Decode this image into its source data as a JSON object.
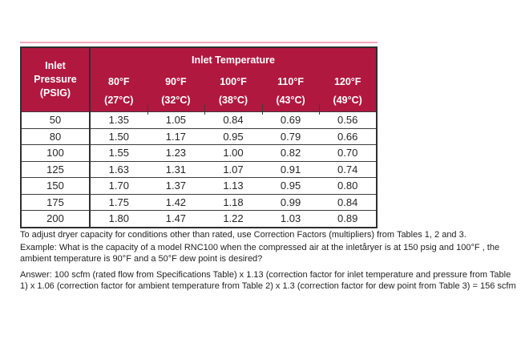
{
  "divider": {
    "color": "#f1a8bc"
  },
  "table": {
    "accent_color": "#b11840",
    "border_color": "#2f2f2f",
    "header": {
      "pressure_label": "Inlet Pressure (PSIG)",
      "group_label": "Inlet Temperature",
      "columns": [
        {
          "fahrenheit": "80°F",
          "celsius": "(27°C)"
        },
        {
          "fahrenheit": "90°F",
          "celsius": "(32°C)"
        },
        {
          "fahrenheit": "100°F",
          "celsius": "(38°C)"
        },
        {
          "fahrenheit": "110°F",
          "celsius": "(43°C)"
        },
        {
          "fahrenheit": "120°F",
          "celsius": "(49°C)"
        }
      ]
    },
    "rows": [
      {
        "pressure": "50",
        "factors": [
          "1.35",
          "1.05",
          "0.84",
          "0.69",
          "0.56"
        ]
      },
      {
        "pressure": "80",
        "factors": [
          "1.50",
          "1.17",
          "0.95",
          "0.79",
          "0.66"
        ]
      },
      {
        "pressure": "100",
        "factors": [
          "1.55",
          "1.23",
          "1.00",
          "0.82",
          "0.70"
        ]
      },
      {
        "pressure": "125",
        "factors": [
          "1.63",
          "1.31",
          "1.07",
          "0.91",
          "0.74"
        ]
      },
      {
        "pressure": "150",
        "factors": [
          "1.70",
          "1.37",
          "1.13",
          "0.95",
          "0.80"
        ]
      },
      {
        "pressure": "175",
        "factors": [
          "1.75",
          "1.42",
          "1.18",
          "0.99",
          "0.84"
        ]
      },
      {
        "pressure": "200",
        "factors": [
          "1.80",
          "1.47",
          "1.22",
          "1.03",
          "0.89"
        ]
      }
    ]
  },
  "notes": {
    "intro": "To adjust dryer capacity for conditions other than rated, use Correction Factors (multipliers) from Tables 1, 2 and 3.",
    "example": [
      "Example: What is the capacity of a model RNC100 when the compressed air at the inletåryer is at 150 psig and 100°F , the",
      "ambient temperature is 90°F and a 50°F dew point is desired?"
    ],
    "answer": [
      "Answer: 100 scfm (rated flow from Specifications Table) x 1.13 (correction factor for inlet temperature and pressure from Table",
      "1) x 1.06 (correction factor for ambient temperature from Table 2) x 1.3 (correction factor for dew point from Table 3) = 156 scfm"
    ]
  }
}
